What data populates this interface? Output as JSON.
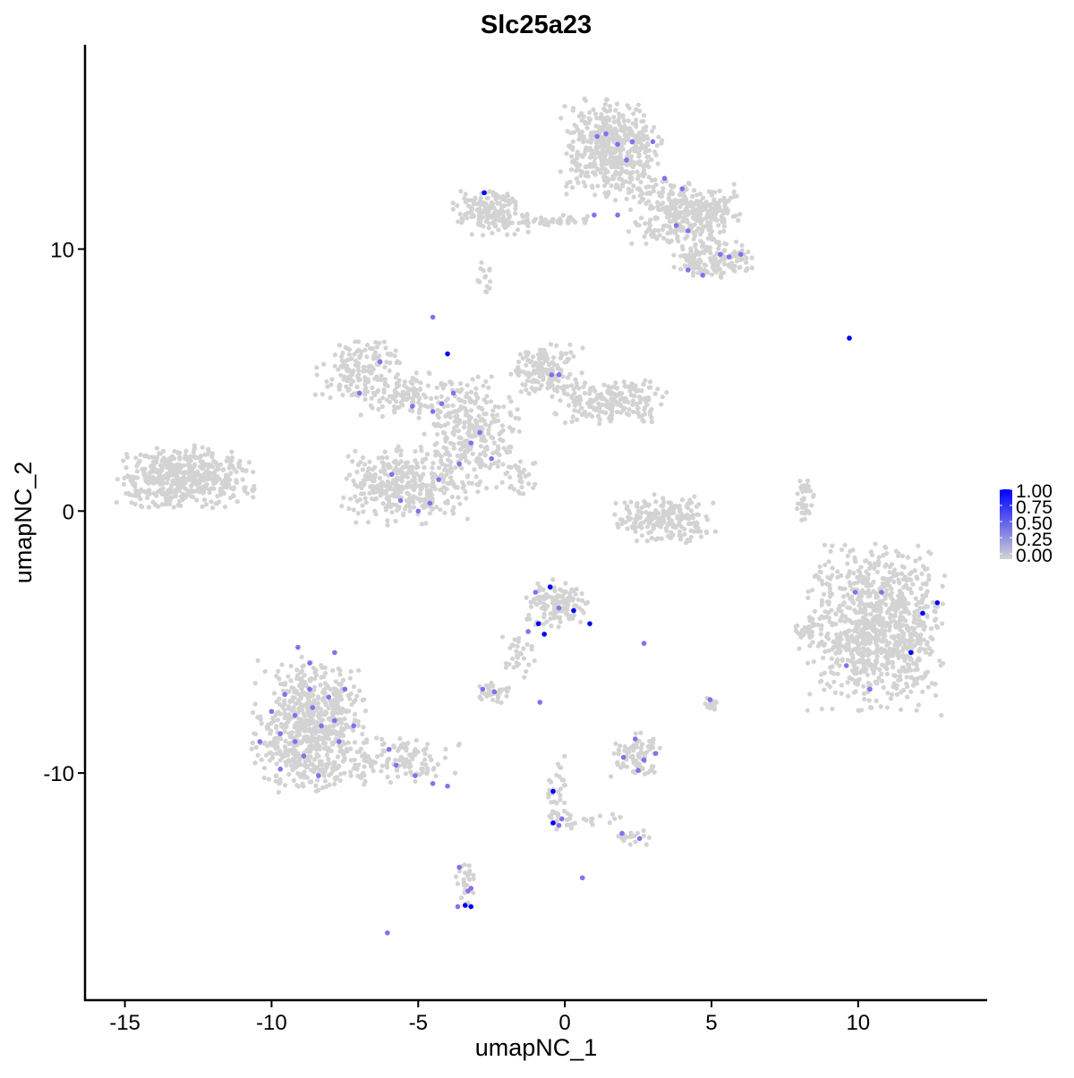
{
  "chart_data": {
    "type": "scatter",
    "title": "Slc25a23",
    "xlabel": "umapNC_1",
    "ylabel": "umapNC_2",
    "xlim": [
      -16.36,
      14.4
    ],
    "ylim": [
      -18.67,
      17.8
    ],
    "xticks": [
      -15,
      -10,
      -5,
      0,
      5,
      10
    ],
    "xtick_labels": [
      "-15",
      "-10",
      "-5",
      "0",
      "5",
      "10"
    ],
    "yticks": [
      -10,
      0,
      10
    ],
    "ytick_labels": [
      "-10",
      "0",
      "10"
    ],
    "grid": false,
    "legend": {
      "placement": "right",
      "type": "colorbar",
      "ticks": [
        1.0,
        0.75,
        0.5,
        0.25,
        0.0
      ],
      "tick_labels": [
        "1.00",
        "0.75",
        "0.50",
        "0.25",
        "0.00"
      ]
    },
    "colors": {
      "low": "#d3d3d3",
      "high": "#0000ff"
    },
    "background_clusters_note_free": true,
    "background_clusters": [
      {
        "cx": 1.6,
        "cy": 13.8,
        "sx": 0.8,
        "sy": 0.9,
        "n": 500
      },
      {
        "cx": 4.1,
        "cy": 11.4,
        "sx": 0.9,
        "sy": 0.6,
        "n": 350
      },
      {
        "cx": 5.0,
        "cy": 9.6,
        "sx": 0.7,
        "sy": 0.35,
        "n": 150
      },
      {
        "cx": -2.5,
        "cy": 11.4,
        "sx": 0.6,
        "sy": 0.4,
        "n": 150
      },
      {
        "cx": -0.8,
        "cy": 11.1,
        "sx": 1.1,
        "sy": 0.1,
        "n": 60
      },
      {
        "cx": -2.8,
        "cy": 8.9,
        "sx": 0.15,
        "sy": 0.3,
        "n": 15
      },
      {
        "cx": -13.0,
        "cy": 1.3,
        "sx": 1.1,
        "sy": 0.55,
        "n": 500
      },
      {
        "cx": -7.0,
        "cy": 5.4,
        "sx": 0.7,
        "sy": 0.5,
        "n": 150
      },
      {
        "cx": -5.4,
        "cy": 4.4,
        "sx": 0.8,
        "sy": 0.4,
        "n": 100
      },
      {
        "cx": -3.2,
        "cy": 3.0,
        "sx": 0.8,
        "sy": 1.1,
        "n": 300
      },
      {
        "cx": -5.5,
        "cy": 1.0,
        "sx": 1.0,
        "sy": 0.7,
        "n": 350
      },
      {
        "cx": -0.6,
        "cy": 5.4,
        "sx": 0.6,
        "sy": 0.5,
        "n": 150
      },
      {
        "cx": 1.5,
        "cy": 4.2,
        "sx": 0.9,
        "sy": 0.4,
        "n": 200
      },
      {
        "cx": -1.7,
        "cy": 1.3,
        "sx": 0.35,
        "sy": 0.35,
        "n": 30
      },
      {
        "cx": 3.4,
        "cy": -0.3,
        "sx": 0.8,
        "sy": 0.45,
        "n": 200
      },
      {
        "cx": 8.2,
        "cy": 0.3,
        "sx": 0.15,
        "sy": 0.5,
        "n": 40
      },
      {
        "cx": 10.6,
        "cy": -4.5,
        "sx": 1.1,
        "sy": 1.5,
        "n": 900
      },
      {
        "cx": 8.2,
        "cy": -4.6,
        "sx": 0.25,
        "sy": 0.3,
        "n": 30
      },
      {
        "cx": -0.3,
        "cy": -3.6,
        "sx": 0.5,
        "sy": 0.45,
        "n": 150
      },
      {
        "cx": -1.6,
        "cy": -5.6,
        "sx": 0.3,
        "sy": 0.5,
        "n": 30
      },
      {
        "cx": -2.5,
        "cy": -6.9,
        "sx": 0.3,
        "sy": 0.2,
        "n": 40
      },
      {
        "cx": -8.7,
        "cy": -8.2,
        "sx": 0.9,
        "sy": 1.2,
        "n": 700
      },
      {
        "cx": -5.5,
        "cy": -9.5,
        "sx": 0.9,
        "sy": 0.4,
        "n": 120
      },
      {
        "cx": 2.4,
        "cy": -9.3,
        "sx": 0.4,
        "sy": 0.4,
        "n": 80
      },
      {
        "cx": 5.0,
        "cy": -7.3,
        "sx": 0.1,
        "sy": 0.15,
        "n": 15
      },
      {
        "cx": -0.3,
        "cy": -11.0,
        "sx": 0.2,
        "sy": 0.8,
        "n": 40
      },
      {
        "cx": -3.4,
        "cy": -14.3,
        "sx": 0.15,
        "sy": 0.5,
        "n": 30
      },
      {
        "cx": 2.3,
        "cy": -12.4,
        "sx": 0.3,
        "sy": 0.15,
        "n": 20
      },
      {
        "cx": 1.0,
        "cy": -11.8,
        "sx": 0.6,
        "sy": 0.15,
        "n": 20
      }
    ],
    "expressing_points": [
      [
        1.1,
        14.3,
        0.6
      ],
      [
        1.4,
        14.4,
        0.6
      ],
      [
        1.8,
        14.0,
        0.6
      ],
      [
        2.3,
        14.1,
        0.6
      ],
      [
        2.1,
        13.4,
        0.6
      ],
      [
        3.0,
        14.1,
        0.6
      ],
      [
        3.4,
        12.7,
        0.6
      ],
      [
        4.0,
        12.3,
        0.6
      ],
      [
        1.0,
        11.3,
        0.6
      ],
      [
        1.8,
        11.3,
        0.6
      ],
      [
        4.2,
        10.7,
        0.6
      ],
      [
        3.8,
        10.9,
        0.6
      ],
      [
        5.3,
        9.8,
        0.6
      ],
      [
        5.6,
        9.7,
        0.6
      ],
      [
        6.0,
        9.8,
        0.6
      ],
      [
        4.2,
        9.2,
        0.6
      ],
      [
        4.7,
        9.0,
        0.6
      ],
      [
        -2.75,
        12.15,
        1.0
      ],
      [
        9.7,
        6.6,
        1.0
      ],
      [
        -4.5,
        7.4,
        0.6
      ],
      [
        -4.0,
        6.0,
        1.0
      ],
      [
        -6.3,
        5.7,
        0.6
      ],
      [
        -7.0,
        4.5,
        0.6
      ],
      [
        -5.2,
        4.0,
        0.6
      ],
      [
        -4.5,
        3.8,
        0.6
      ],
      [
        -4.2,
        4.1,
        0.6
      ],
      [
        -3.8,
        4.5,
        0.6
      ],
      [
        -0.45,
        5.2,
        0.6
      ],
      [
        -0.2,
        5.2,
        0.6
      ],
      [
        -2.9,
        3.0,
        0.6
      ],
      [
        -3.2,
        2.6,
        0.6
      ],
      [
        -3.6,
        1.8,
        0.6
      ],
      [
        -2.5,
        2.0,
        0.6
      ],
      [
        -5.9,
        1.4,
        0.6
      ],
      [
        -4.3,
        1.2,
        0.6
      ],
      [
        -5.6,
        0.4,
        0.6
      ],
      [
        -4.6,
        0.3,
        0.6
      ],
      [
        -5.0,
        0.0,
        0.6
      ],
      [
        9.9,
        -3.1,
        0.6
      ],
      [
        10.8,
        -3.1,
        0.6
      ],
      [
        12.2,
        -3.9,
        1.0
      ],
      [
        12.7,
        -3.5,
        1.0
      ],
      [
        11.8,
        -5.4,
        1.0
      ],
      [
        9.6,
        -5.9,
        0.6
      ],
      [
        10.4,
        -6.8,
        0.6
      ],
      [
        -0.5,
        -2.9,
        1.0
      ],
      [
        -1.0,
        -3.1,
        0.6
      ],
      [
        -0.2,
        -3.7,
        0.6
      ],
      [
        0.3,
        -3.8,
        1.0
      ],
      [
        0.85,
        -4.3,
        1.0
      ],
      [
        -0.9,
        -4.3,
        1.0
      ],
      [
        -0.7,
        -4.7,
        1.0
      ],
      [
        -1.25,
        -4.6,
        0.6
      ],
      [
        2.7,
        -5.05,
        0.6
      ],
      [
        -2.8,
        -6.8,
        0.6
      ],
      [
        -2.4,
        -6.9,
        0.6
      ],
      [
        -0.85,
        -7.3,
        0.6
      ],
      [
        4.95,
        -7.2,
        0.6
      ],
      [
        -9.1,
        -5.2,
        0.6
      ],
      [
        -8.7,
        -5.8,
        0.6
      ],
      [
        -7.85,
        -5.4,
        0.6
      ],
      [
        -9.55,
        -7.0,
        0.6
      ],
      [
        -9.2,
        -7.8,
        0.6
      ],
      [
        -9.7,
        -8.5,
        0.6
      ],
      [
        -10.4,
        -8.8,
        0.6
      ],
      [
        -8.6,
        -7.5,
        0.6
      ],
      [
        -8.3,
        -8.2,
        0.6
      ],
      [
        -7.85,
        -8.0,
        0.6
      ],
      [
        -7.7,
        -8.8,
        0.6
      ],
      [
        -7.2,
        -8.2,
        0.6
      ],
      [
        -8.9,
        -9.35,
        0.6
      ],
      [
        -9.7,
        -9.85,
        0.6
      ],
      [
        -8.4,
        -10.1,
        0.6
      ],
      [
        -9.2,
        -8.8,
        0.6
      ],
      [
        -8.05,
        -7.1,
        0.6
      ],
      [
        -10.0,
        -7.65,
        0.6
      ],
      [
        -7.5,
        -6.8,
        0.6
      ],
      [
        -8.7,
        -6.8,
        0.6
      ],
      [
        -6.0,
        -9.1,
        0.6
      ],
      [
        -5.75,
        -9.7,
        0.6
      ],
      [
        -5.1,
        -10.1,
        0.6
      ],
      [
        -4.5,
        -10.4,
        0.6
      ],
      [
        -4.0,
        -10.5,
        0.6
      ],
      [
        2.4,
        -8.7,
        0.6
      ],
      [
        2.0,
        -9.4,
        0.6
      ],
      [
        2.7,
        -9.5,
        0.6
      ],
      [
        3.1,
        -9.25,
        0.6
      ],
      [
        2.5,
        -9.9,
        0.6
      ],
      [
        -0.4,
        -10.7,
        1.0
      ],
      [
        -0.4,
        -11.9,
        1.0
      ],
      [
        -0.2,
        -12.0,
        0.6
      ],
      [
        -0.1,
        -11.75,
        0.6
      ],
      [
        1.95,
        -12.3,
        0.6
      ],
      [
        2.55,
        -12.5,
        0.6
      ],
      [
        -3.6,
        -13.6,
        0.6
      ],
      [
        -3.3,
        -14.5,
        0.6
      ],
      [
        -3.4,
        -15.05,
        1.0
      ],
      [
        -3.2,
        -15.1,
        1.0
      ],
      [
        -3.65,
        -15.1,
        0.6
      ],
      [
        -3.2,
        -14.4,
        0.6
      ],
      [
        -6.05,
        -16.1,
        0.6
      ],
      [
        0.6,
        -14.0,
        0.6
      ]
    ]
  }
}
